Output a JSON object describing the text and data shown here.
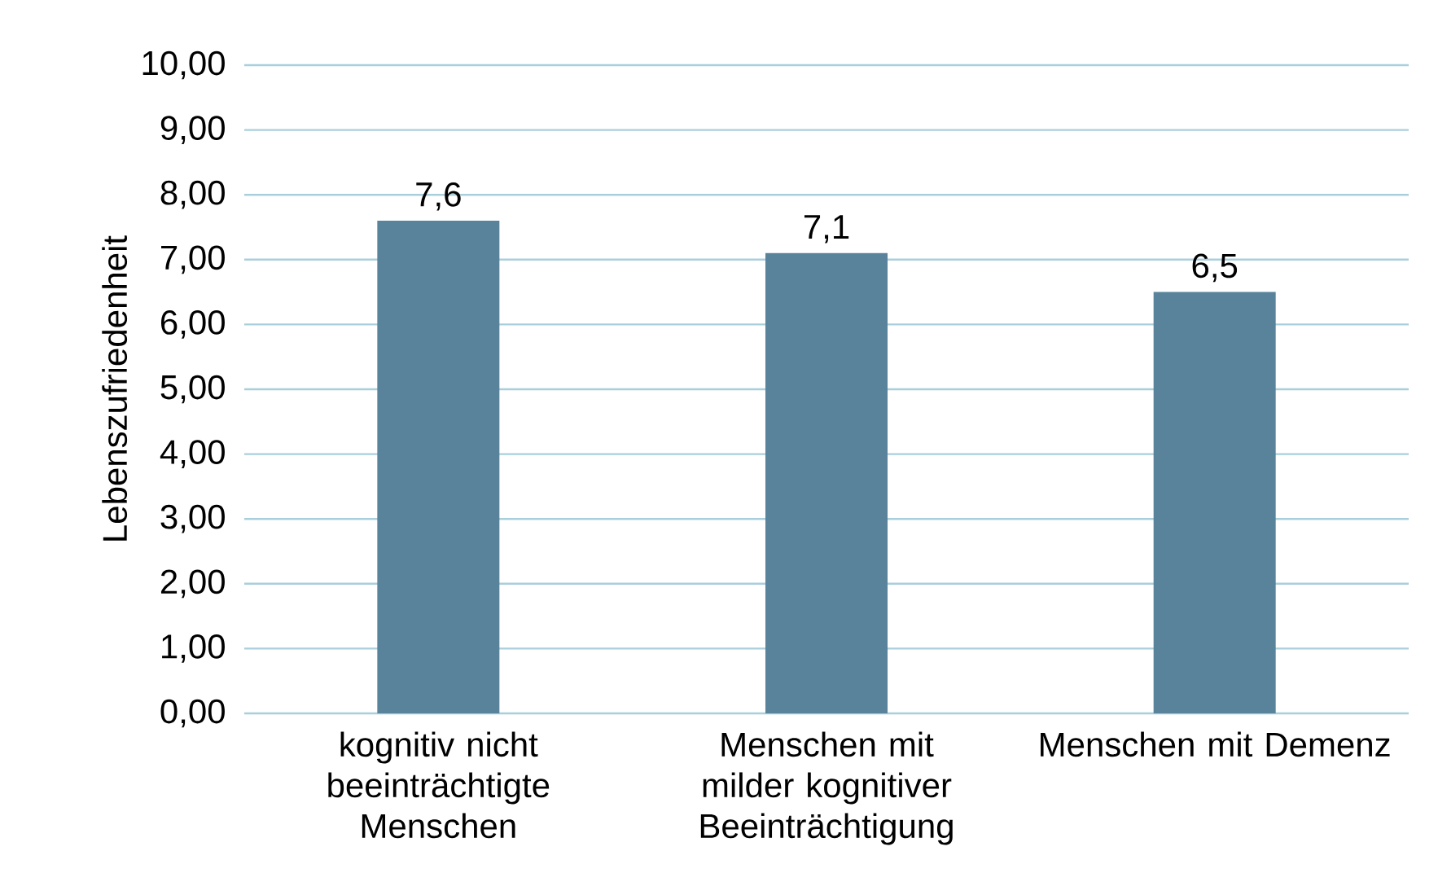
{
  "chart_data": {
    "type": "bar",
    "ylabel": "Lebenszufriedenheit",
    "categories": [
      "kognitiv nicht beeinträchtigte Menschen",
      "Menschen mit milder kognitiver Beeinträchtigung",
      "Menschen mit Demenz"
    ],
    "values": [
      7.6,
      7.1,
      6.5
    ],
    "value_labels": [
      "7,6",
      "7,1",
      "6,5"
    ],
    "color": "#58839b",
    "ylim": [
      0,
      10
    ],
    "yticks": [
      {
        "value": 0,
        "label": "0,00"
      },
      {
        "value": 1,
        "label": "1,00"
      },
      {
        "value": 2,
        "label": "2,00"
      },
      {
        "value": 3,
        "label": "3,00"
      },
      {
        "value": 4,
        "label": "4,00"
      },
      {
        "value": 5,
        "label": "5,00"
      },
      {
        "value": 6,
        "label": "6,00"
      },
      {
        "value": 7,
        "label": "7,00"
      },
      {
        "value": 8,
        "label": "8,00"
      },
      {
        "value": 9,
        "label": "9,00"
      },
      {
        "value": 10,
        "label": "10,00"
      }
    ],
    "grid": "y"
  }
}
